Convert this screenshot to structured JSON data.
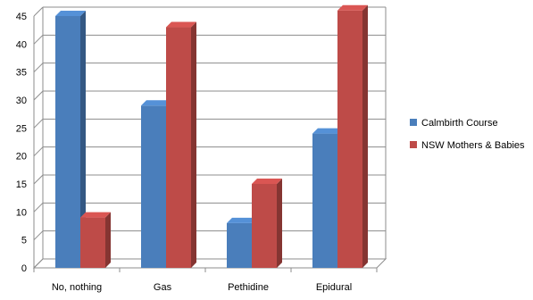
{
  "chart_data": {
    "type": "bar",
    "categories": [
      "No, nothing",
      "Gas",
      "Pethidine",
      "Epidural"
    ],
    "series": [
      {
        "name": "Calmbirth Course",
        "values": [
          45,
          29,
          8,
          24
        ],
        "color": "#4a7ebb"
      },
      {
        "name": "NSW Mothers & Babies",
        "values": [
          9,
          43,
          15,
          46
        ],
        "color": "#be4b48"
      }
    ],
    "ylim": [
      0,
      45
    ],
    "yticks": [
      0,
      5,
      10,
      15,
      20,
      25,
      30,
      35,
      40,
      45
    ],
    "grid": true,
    "legend": "right",
    "style": "3d-clustered-column"
  }
}
